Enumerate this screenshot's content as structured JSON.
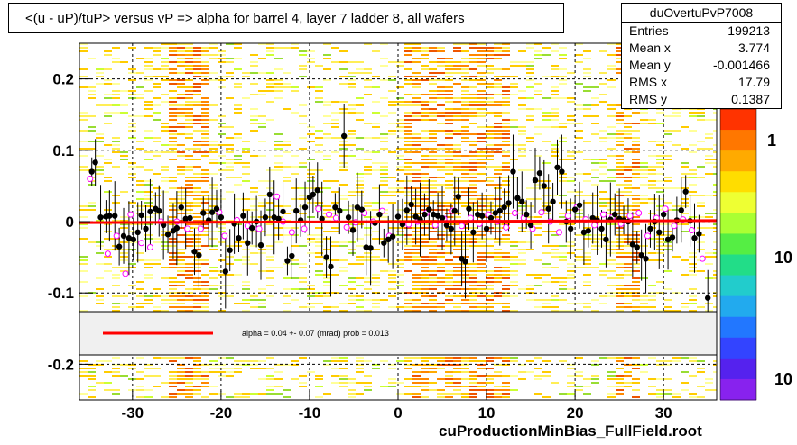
{
  "title": "<(u - uP)/tuP> versus   vP => alpha for barrel 4, layer 7 ladder 8, all wafers",
  "stats": {
    "name": "duOvertuPvP7008",
    "rows": [
      {
        "label": "Entries",
        "value": "199213"
      },
      {
        "label": "Mean x",
        "value": "3.774"
      },
      {
        "label": "Mean y",
        "value": "-0.001466"
      },
      {
        "label": "RMS x",
        "value": "17.79"
      },
      {
        "label": "RMS y",
        "value": "0.1387"
      }
    ]
  },
  "fit_legend": "alpha =    0.04 +-  0.07 (mrad) prob = 0.013",
  "footer": "cuProductionMinBias_FullField.root",
  "colorbar_labels": [
    "1",
    "10",
    "10"
  ],
  "colors": {
    "fit_line": "#ff0000",
    "points": "#000000",
    "open_markers": "#ff00ff",
    "legend_bg": "#f0f0f0"
  },
  "chart_data": {
    "type": "scatter",
    "xlim": [
      -36,
      36
    ],
    "ylim": [
      -0.25,
      0.25
    ],
    "x_ticks": [
      -30,
      -20,
      -10,
      0,
      10,
      20,
      30
    ],
    "y_ticks": [
      -0.2,
      -0.1,
      0,
      0.1,
      0.2
    ],
    "grid": true,
    "fit_line": {
      "slope": 4e-05,
      "intercept": 0.0
    },
    "points": [
      [
        -34.6,
        0.07
      ],
      [
        -34.2,
        0.083
      ],
      [
        -33.6,
        0.006
      ],
      [
        -33.0,
        0.007
      ],
      [
        -32.6,
        0.008
      ],
      [
        -32.0,
        0.008
      ],
      [
        -31.5,
        -0.035
      ],
      [
        -31.0,
        -0.02
      ],
      [
        -30.4,
        -0.023
      ],
      [
        -29.9,
        -0.025
      ],
      [
        -29.4,
        -0.015
      ],
      [
        -29.0,
        0.009
      ],
      [
        -28.5,
        -0.01
      ],
      [
        -28.0,
        0.014
      ],
      [
        -27.4,
        0.018
      ],
      [
        -27.0,
        0.015
      ],
      [
        -26.5,
        -0.005
      ],
      [
        -26.0,
        -0.018
      ],
      [
        -25.4,
        -0.013
      ],
      [
        -25.0,
        -0.009
      ],
      [
        -24.5,
        0.02
      ],
      [
        -24.0,
        0.004
      ],
      [
        -23.5,
        0.005
      ],
      [
        -23.0,
        -0.042
      ],
      [
        -22.5,
        -0.047
      ],
      [
        -22.0,
        0.012
      ],
      [
        -21.4,
        0.002
      ],
      [
        -21.0,
        0.013
      ],
      [
        -20.5,
        0.018
      ],
      [
        -20.0,
        0.006
      ],
      [
        -19.5,
        -0.07
      ],
      [
        -19.0,
        -0.04
      ],
      [
        -18.5,
        -0.003
      ],
      [
        -18.0,
        -0.023
      ],
      [
        -17.5,
        0.008
      ],
      [
        -17.0,
        -0.03
      ],
      [
        -16.5,
        -0.009
      ],
      [
        -16.0,
        0.0
      ],
      [
        -15.5,
        -0.033
      ],
      [
        -15.0,
        0.006
      ],
      [
        -14.5,
        0.038
      ],
      [
        -14.0,
        0.006
      ],
      [
        -13.5,
        0.004
      ],
      [
        -13.0,
        0.014
      ],
      [
        -12.5,
        -0.055
      ],
      [
        -12.0,
        -0.048
      ],
      [
        -11.5,
        0.015
      ],
      [
        -11.0,
        0.002
      ],
      [
        -10.5,
        0.02
      ],
      [
        -10.0,
        0.034
      ],
      [
        -9.6,
        0.038
      ],
      [
        -9.1,
        0.044
      ],
      [
        -8.6,
        0.004
      ],
      [
        -8.1,
        -0.05
      ],
      [
        -7.6,
        -0.063
      ],
      [
        -7.1,
        0.02
      ],
      [
        -6.6,
        0.015
      ],
      [
        -6.1,
        0.12
      ],
      [
        -5.6,
        0.006
      ],
      [
        -5.1,
        -0.012
      ],
      [
        -4.6,
        0.02
      ],
      [
        -4.1,
        0.017
      ],
      [
        -3.6,
        -0.036
      ],
      [
        -3.1,
        -0.037
      ],
      [
        -2.6,
        -0.002
      ],
      [
        -2.1,
        0.01
      ],
      [
        -1.6,
        -0.03
      ],
      [
        -1.1,
        -0.025
      ],
      [
        -0.6,
        -0.021
      ],
      [
        0.0,
        0.007
      ],
      [
        0.5,
        -0.004
      ],
      [
        1.0,
        0.016
      ],
      [
        1.5,
        0.024
      ],
      [
        2.0,
        0.007
      ],
      [
        2.5,
        0.003
      ],
      [
        3.0,
        0.01
      ],
      [
        3.5,
        0.017
      ],
      [
        4.0,
        0.01
      ],
      [
        4.5,
        0.008
      ],
      [
        5.0,
        0.005
      ],
      [
        5.5,
        -0.005
      ],
      [
        6.0,
        -0.01
      ],
      [
        6.4,
        0.015
      ],
      [
        6.8,
        0.035
      ],
      [
        7.2,
        -0.052
      ],
      [
        7.6,
        -0.056
      ],
      [
        8.0,
        0.018
      ],
      [
        8.5,
        -0.015
      ],
      [
        9.0,
        0.01
      ],
      [
        9.5,
        0.008
      ],
      [
        10.0,
        -0.01
      ],
      [
        10.5,
        0.005
      ],
      [
        11.0,
        0.012
      ],
      [
        11.5,
        0.015
      ],
      [
        12.0,
        0.02
      ],
      [
        12.5,
        0.026
      ],
      [
        13.0,
        0.07
      ],
      [
        13.5,
        0.033
      ],
      [
        14.0,
        0.028
      ],
      [
        14.5,
        0.01
      ],
      [
        15.0,
        -0.005
      ],
      [
        15.5,
        0.058
      ],
      [
        16.0,
        0.068
      ],
      [
        16.5,
        0.05
      ],
      [
        17.0,
        0.018
      ],
      [
        17.5,
        0.028
      ],
      [
        18.0,
        0.076
      ],
      [
        18.5,
        0.07
      ],
      [
        19.0,
        0.0
      ],
      [
        19.5,
        -0.01
      ],
      [
        20.0,
        0.017
      ],
      [
        20.5,
        0.023
      ],
      [
        21.0,
        -0.015
      ],
      [
        21.5,
        -0.013
      ],
      [
        22.0,
        0.005
      ],
      [
        22.5,
        0.002
      ],
      [
        23.0,
        -0.01
      ],
      [
        23.5,
        -0.025
      ],
      [
        24.0,
        0.003
      ],
      [
        24.5,
        0.01
      ],
      [
        25.0,
        0.004
      ],
      [
        25.5,
        0.002
      ],
      [
        26.0,
        0.0
      ],
      [
        26.5,
        -0.032
      ],
      [
        27.0,
        -0.036
      ],
      [
        27.5,
        -0.047
      ],
      [
        28.0,
        -0.052
      ],
      [
        28.5,
        -0.01
      ],
      [
        29.0,
        0.0
      ],
      [
        29.5,
        -0.015
      ],
      [
        30.0,
        0.01
      ],
      [
        30.5,
        -0.025
      ],
      [
        31.0,
        -0.022
      ],
      [
        31.5,
        0.002
      ],
      [
        32.0,
        0.016
      ],
      [
        32.5,
        0.042
      ],
      [
        33.0,
        0.001
      ],
      [
        33.5,
        -0.023
      ],
      [
        34.0,
        -0.017
      ],
      [
        35.0,
        -0.107
      ]
    ],
    "open_points": [
      [
        -34.8,
        0.06
      ],
      [
        -32.8,
        -0.045
      ],
      [
        -31.8,
        -0.02
      ],
      [
        -30.8,
        -0.073
      ],
      [
        -30.2,
        0.01
      ],
      [
        -29.0,
        -0.03
      ],
      [
        -28.0,
        -0.036
      ],
      [
        -26.8,
        0.0
      ],
      [
        -25.0,
        0.0
      ],
      [
        -23.8,
        -0.01
      ],
      [
        -22.3,
        -0.01
      ],
      [
        -20.2,
        0.013
      ],
      [
        -19.6,
        -0.02
      ],
      [
        -18.2,
        0.002
      ],
      [
        -17.0,
        -0.006
      ],
      [
        -15.7,
        -0.01
      ],
      [
        -13.7,
        0.035
      ],
      [
        -13.0,
        0.0
      ],
      [
        -12.0,
        -0.015
      ],
      [
        -10.6,
        -0.01
      ],
      [
        -9.0,
        0.018
      ],
      [
        -7.8,
        0.01
      ],
      [
        -7.0,
        0.005
      ],
      [
        -5.8,
        -0.008
      ],
      [
        -4.8,
        -0.001
      ],
      [
        -3.8,
        0.012
      ],
      [
        -2.8,
        0.0
      ],
      [
        -1.8,
        0.015
      ],
      [
        -1.0,
        -0.02
      ],
      [
        1.2,
        -0.004
      ],
      [
        2.2,
        0.0
      ],
      [
        3.2,
        0.012
      ],
      [
        4.2,
        -0.005
      ],
      [
        5.2,
        0.004
      ],
      [
        6.2,
        0.015
      ],
      [
        7.2,
        -0.006
      ],
      [
        8.2,
        0.005
      ],
      [
        9.2,
        -0.003
      ],
      [
        10.2,
        0.01
      ],
      [
        11.2,
        0.0
      ],
      [
        12.2,
        -0.008
      ],
      [
        13.2,
        0.012
      ],
      [
        14.2,
        0.005
      ],
      [
        15.2,
        -0.01
      ],
      [
        16.2,
        0.013
      ],
      [
        17.2,
        0.0
      ],
      [
        18.2,
        -0.015
      ],
      [
        19.2,
        0.008
      ],
      [
        20.2,
        0.02
      ],
      [
        21.2,
        0.003
      ],
      [
        22.2,
        -0.005
      ],
      [
        23.2,
        0.01
      ],
      [
        24.2,
        0.006
      ],
      [
        25.2,
        -0.003
      ],
      [
        26.2,
        0.008
      ],
      [
        27.2,
        0.012
      ],
      [
        28.2,
        -0.02
      ],
      [
        29.2,
        0.005
      ],
      [
        30.2,
        0.018
      ],
      [
        31.2,
        -0.006
      ],
      [
        32.2,
        0.003
      ],
      [
        33.2,
        -0.012
      ],
      [
        34.4,
        -0.052
      ]
    ]
  }
}
